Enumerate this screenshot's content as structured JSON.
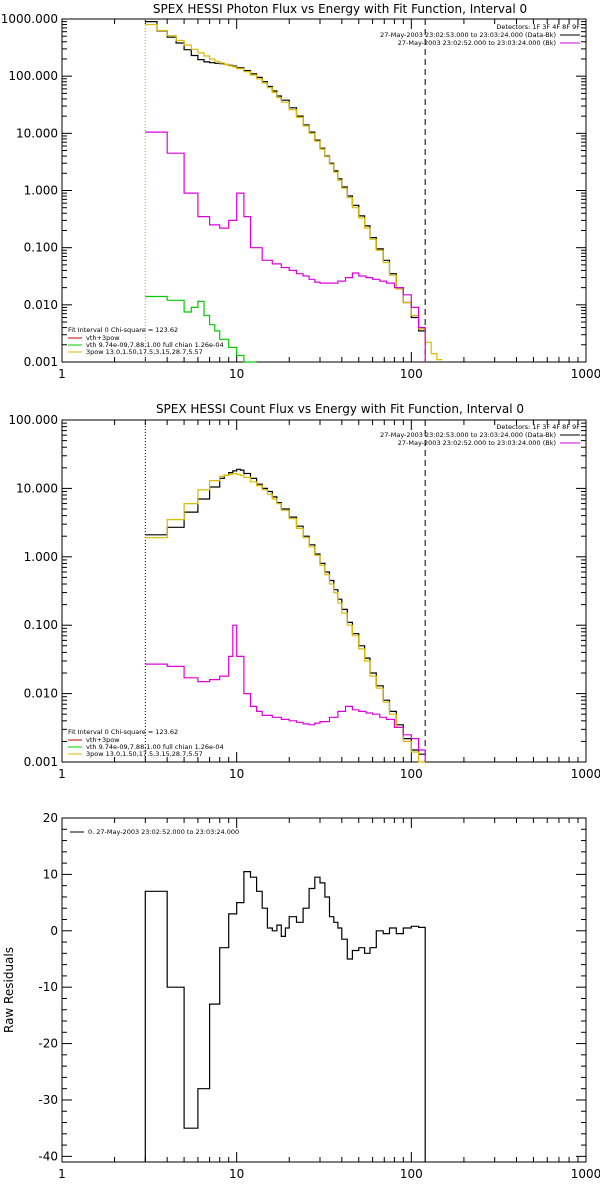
{
  "chart_data": [
    {
      "type": "line",
      "title": "SPEX HESSI Photon Flux vs Energy with Fit Function, Interval 0",
      "xscale": "log",
      "yscale": "log",
      "xlim": [
        1,
        1000
      ],
      "ylim": [
        0.001,
        1000
      ],
      "xticks": [
        "1",
        "10",
        "100",
        "1000"
      ],
      "yticks": [
        "1000.000",
        "100.000",
        "10.000",
        "1.000",
        "0.100",
        "0.010",
        "0.001"
      ],
      "vlines": [
        {
          "x": 3,
          "style": "dotted",
          "color": "#ff8c00"
        },
        {
          "x": 120,
          "style": "dashed",
          "color": "#000000"
        }
      ],
      "header_text": {
        "detectors": "Detectors: 1F 3F 4F 8F 9F",
        "line1": "27-May-2003 23:02:53.000 to 23:03:24.000 (Data-Bk)",
        "line2": "27-May-2003 23:02:52.000 to 23:03:24.000 (Bk)"
      },
      "legend": {
        "title": "Fit Interval 0   Chi-square = 123.62",
        "entries": [
          {
            "label": "vth+3pow",
            "color": "#cc0000"
          },
          {
            "label": "vth 9.74e-09,7.88,1.00  full chian 1.26e-04",
            "color": "#00cc00"
          },
          {
            "label": "3pow  13.0,1.50,17.5,3.15,28.7,5.57",
            "color": "#ddbb00"
          }
        ]
      },
      "series": [
        {
          "role": "data",
          "color": "#000000",
          "edges": [
            3,
            3.5,
            4,
            4.5,
            5,
            5.5,
            6,
            6.5,
            7,
            7.5,
            8,
            8.5,
            9,
            9.5,
            10,
            11,
            12,
            13,
            14,
            15,
            16,
            17,
            18,
            20,
            22,
            24,
            26,
            28,
            30,
            32,
            34,
            36,
            38,
            40,
            43,
            46,
            50,
            54,
            58,
            63,
            69,
            75,
            82,
            90,
            100,
            110,
            120
          ],
          "values": [
            900,
            620,
            480,
            380,
            290,
            230,
            195,
            178,
            172,
            168,
            165,
            160,
            155,
            150,
            140,
            125,
            110,
            95,
            80,
            66,
            55,
            45,
            38,
            28,
            20,
            14,
            10.5,
            7.6,
            5.5,
            4.0,
            3.0,
            2.2,
            1.6,
            1.15,
            0.8,
            0.55,
            0.36,
            0.24,
            0.15,
            0.095,
            0.06,
            0.035,
            0.02,
            0.011,
            0.006,
            0.0035
          ]
        },
        {
          "role": "model",
          "color": "#ddbb00",
          "edges": [
            3,
            3.5,
            4,
            4.5,
            5,
            5.5,
            6,
            6.5,
            7,
            7.5,
            8,
            8.5,
            9,
            9.5,
            10,
            11,
            12,
            13,
            14,
            15,
            16,
            17,
            18,
            20,
            22,
            24,
            26,
            28,
            30,
            32,
            34,
            36,
            38,
            40,
            43,
            46,
            50,
            54,
            58,
            63,
            69,
            75,
            82,
            90,
            100,
            110,
            120,
            130,
            140,
            150
          ],
          "values": [
            800,
            630,
            510,
            420,
            350,
            295,
            255,
            225,
            200,
            182,
            170,
            160,
            152,
            145,
            135,
            120,
            105,
            90,
            76,
            63,
            52,
            42,
            35,
            26,
            19,
            13.5,
            10,
            7.3,
            5.3,
            3.9,
            2.9,
            2.1,
            1.5,
            1.1,
            0.75,
            0.5,
            0.33,
            0.22,
            0.14,
            0.09,
            0.055,
            0.033,
            0.019,
            0.011,
            0.0065,
            0.0038,
            0.0022,
            0.0014,
            0.0011
          ]
        },
        {
          "role": "component",
          "color": "#dd00dd",
          "edges": [
            3,
            4,
            5,
            6,
            7,
            8,
            9,
            10,
            11,
            12,
            14,
            16,
            18,
            20,
            22,
            24,
            26,
            28,
            30,
            34,
            38,
            42,
            46,
            50,
            55,
            60,
            66,
            72,
            80,
            90,
            100,
            110,
            120
          ],
          "values": [
            10.5,
            4.5,
            0.9,
            0.35,
            0.25,
            0.22,
            0.3,
            0.9,
            0.35,
            0.1,
            0.06,
            0.052,
            0.045,
            0.04,
            0.035,
            0.032,
            0.028,
            0.025,
            0.024,
            0.024,
            0.026,
            0.03,
            0.036,
            0.032,
            0.03,
            0.028,
            0.026,
            0.024,
            0.02,
            0.015,
            0.009,
            0.004
          ]
        },
        {
          "role": "component",
          "color": "#00cc00",
          "edges": [
            3,
            4,
            5,
            5.5,
            6,
            6.5,
            7,
            7.5,
            8,
            9,
            10,
            11,
            12,
            13
          ],
          "values": [
            0.014,
            0.012,
            0.0075,
            0.009,
            0.0115,
            0.0065,
            0.0045,
            0.0035,
            0.0025,
            0.0018,
            0.0013,
            0.001,
            0.0008
          ]
        }
      ]
    },
    {
      "type": "line",
      "title": "SPEX HESSI Count Flux vs Energy with Fit Function, Interval 0",
      "xscale": "log",
      "yscale": "log",
      "xlim": [
        1,
        1000
      ],
      "ylim": [
        0.001,
        100
      ],
      "xticks": [
        "1",
        "10",
        "100",
        "1000"
      ],
      "yticks": [
        "100.000",
        "10.000",
        "1.000",
        "0.100",
        "0.010",
        "0.001"
      ],
      "vlines": [
        {
          "x": 3,
          "style": "dotted",
          "color": "#000000"
        },
        {
          "x": 120,
          "style": "dashed",
          "color": "#000000"
        }
      ],
      "header_text": {
        "detectors": "Detectors: 1F 3F 4F 8F 9F",
        "line1": "27-May-2003 23:02:53.000 to 23:03:24.000 (Data-Bk)",
        "line2": "27-May-2003 23:02:52.000 to 23:03:24.000 (Bk)"
      },
      "legend": {
        "title": "Fit Interval 0   Chi-square = 123.62",
        "entries": [
          {
            "label": "vth+3pow",
            "color": "#cc0000"
          },
          {
            "label": "vth 9.74e-09,7.88,1.00  full chian 1.26e-04",
            "color": "#00cc00"
          },
          {
            "label": "3pow  13.0,1.50,17.5,3.15,28.7,5.57",
            "color": "#ddbb00"
          }
        ]
      },
      "series": [
        {
          "role": "data",
          "color": "#000000",
          "edges": [
            3,
            4,
            5,
            6,
            7,
            8,
            8.5,
            9,
            9.5,
            10,
            10.5,
            11,
            12,
            13,
            14,
            15,
            16,
            17,
            18,
            20,
            22,
            24,
            26,
            28,
            30,
            32,
            34,
            36,
            38,
            40,
            43,
            46,
            50,
            54,
            58,
            63,
            69,
            75,
            82,
            90,
            100,
            110,
            120
          ],
          "values": [
            2.1,
            2.7,
            4.5,
            7.0,
            10.5,
            14,
            15.5,
            17,
            18,
            19,
            18.5,
            16.5,
            14,
            11.5,
            10,
            9,
            7.5,
            6.2,
            5.0,
            3.8,
            2.8,
            2.0,
            1.5,
            1.1,
            0.8,
            0.6,
            0.45,
            0.33,
            0.24,
            0.17,
            0.11,
            0.075,
            0.05,
            0.033,
            0.02,
            0.013,
            0.008,
            0.0055,
            0.0035,
            0.0022,
            0.0015,
            0.0013
          ]
        },
        {
          "role": "model",
          "color": "#ddbb00",
          "edges": [
            3,
            4,
            5,
            6,
            7,
            8,
            8.5,
            9,
            9.5,
            10,
            10.5,
            11,
            12,
            13,
            14,
            15,
            16,
            17,
            18,
            20,
            22,
            24,
            26,
            28,
            30,
            32,
            34,
            36,
            38,
            40,
            43,
            46,
            50,
            54,
            58,
            63,
            69,
            75,
            82,
            90,
            100,
            110,
            120
          ],
          "values": [
            1.9,
            3.5,
            6.0,
            9.5,
            13,
            15,
            15.5,
            16,
            16.5,
            16,
            15.5,
            14.5,
            12.5,
            11,
            9.5,
            8.2,
            7.0,
            6.0,
            4.8,
            3.6,
            2.6,
            1.9,
            1.4,
            1.05,
            0.75,
            0.55,
            0.4,
            0.3,
            0.21,
            0.15,
            0.1,
            0.07,
            0.045,
            0.03,
            0.018,
            0.012,
            0.0075,
            0.005,
            0.0032,
            0.002,
            0.0014,
            0.001
          ]
        },
        {
          "role": "component",
          "color": "#dd00dd",
          "edges": [
            3,
            4,
            5,
            6,
            7,
            8,
            9,
            9.5,
            10,
            11,
            12,
            13,
            14,
            16,
            18,
            20,
            22,
            24,
            26,
            28,
            30,
            34,
            38,
            42,
            46,
            50,
            55,
            60,
            66,
            72,
            80,
            90,
            100,
            110,
            120
          ],
          "values": [
            0.027,
            0.025,
            0.017,
            0.015,
            0.016,
            0.018,
            0.035,
            0.1,
            0.035,
            0.01,
            0.0065,
            0.0055,
            0.0048,
            0.0045,
            0.0042,
            0.004,
            0.0038,
            0.0036,
            0.0035,
            0.0037,
            0.0039,
            0.0045,
            0.0055,
            0.0065,
            0.0058,
            0.0055,
            0.0052,
            0.005,
            0.0045,
            0.0042,
            0.0032,
            0.0025,
            0.0022,
            0.0015
          ]
        }
      ]
    },
    {
      "type": "line",
      "title": "",
      "xscale": "log",
      "yscale": "linear",
      "xlim": [
        1,
        1000
      ],
      "ylim": [
        -41,
        20
      ],
      "xticks": [
        "1",
        "10",
        "100",
        "1000"
      ],
      "yticks": [
        "20",
        "10",
        "0",
        "-10",
        "-20",
        "-30",
        "-40"
      ],
      "ylabel": "Raw Residuals",
      "legend": {
        "entries": [
          {
            "label": "0. 27-May-2003 23:02:52.000 to 23:03:24.000",
            "color": "#000000"
          }
        ]
      },
      "series": [
        {
          "role": "residuals",
          "color": "#000000",
          "edges": [
            3,
            4,
            5,
            6,
            7,
            8,
            9,
            10,
            11,
            12,
            13,
            14,
            15,
            16,
            17,
            18,
            19,
            20,
            22,
            24,
            26,
            28,
            30,
            32,
            34,
            36,
            38,
            40,
            43,
            46,
            50,
            54,
            58,
            63,
            69,
            75,
            82,
            90,
            100,
            110,
            120
          ],
          "values": [
            7,
            -10,
            -35,
            -28,
            -13,
            -3,
            3,
            5,
            10.5,
            9.5,
            7,
            4,
            0.5,
            0,
            1,
            -1,
            0.5,
            2.5,
            1.5,
            4,
            7.5,
            9.5,
            8.5,
            6,
            2.5,
            1.5,
            0.5,
            -1.5,
            -5,
            -3.5,
            -3,
            -4,
            -3,
            0,
            -0.5,
            0.5,
            -0.5,
            0.5,
            0.8,
            0.6
          ]
        }
      ]
    }
  ]
}
